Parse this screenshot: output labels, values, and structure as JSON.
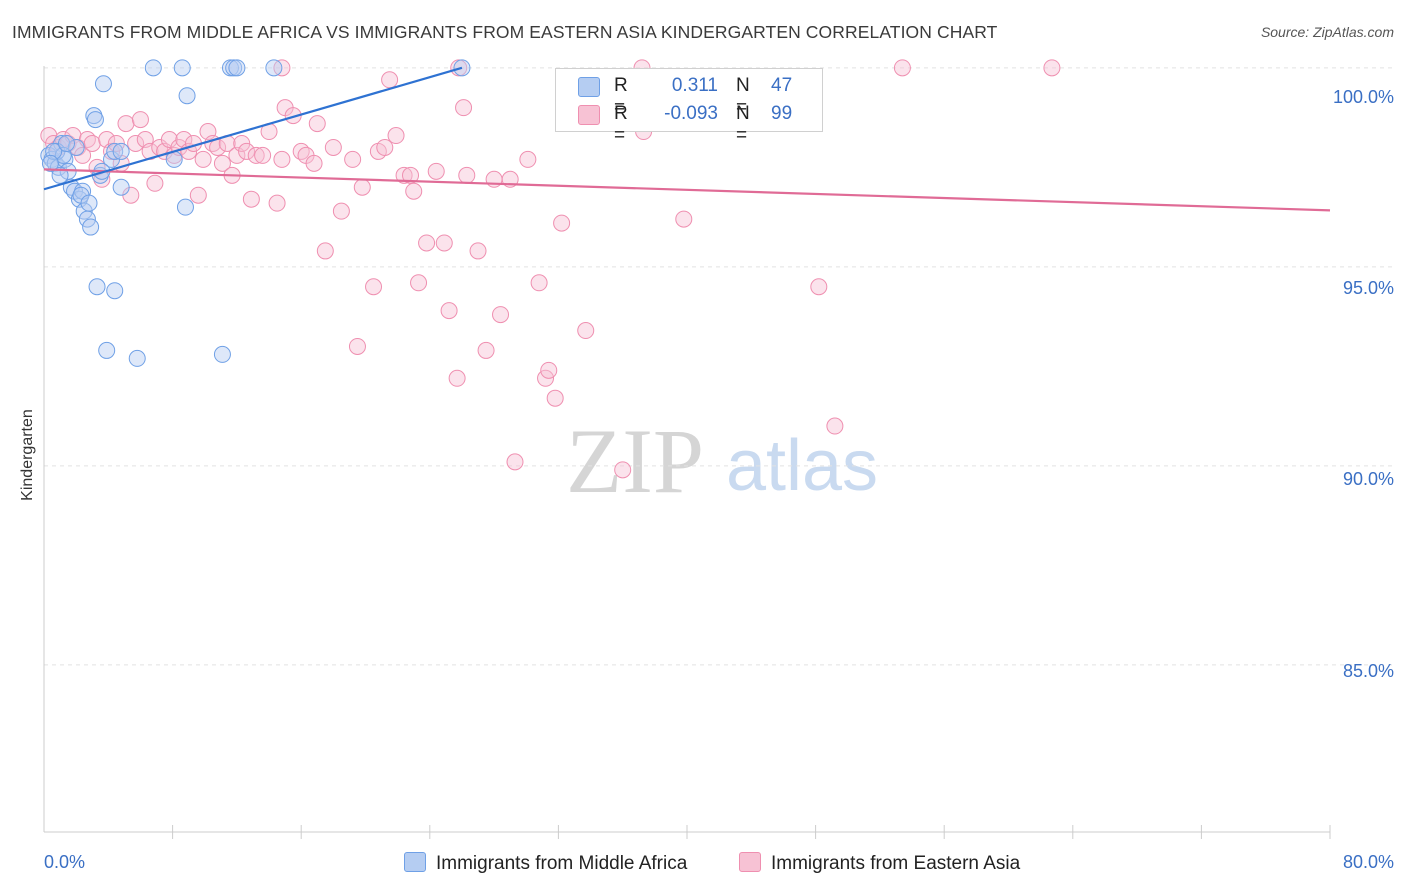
{
  "title": "IMMIGRANTS FROM MIDDLE AFRICA VS IMMIGRANTS FROM EASTERN ASIA KINDERGARTEN CORRELATION CHART",
  "source": "Source: ZipAtlas.com",
  "watermark": {
    "zip": "ZIP",
    "atlas": "atlas"
  },
  "legend": {
    "r_label": "R =",
    "n_label": "N =",
    "rows": [
      {
        "name": "Immigrants from Middle Africa",
        "r": "0.311",
        "n": "47"
      },
      {
        "name": "Immigrants from Eastern Asia",
        "r": "-0.093",
        "n": "99"
      }
    ]
  },
  "colors": {
    "blue": "#6fa0e6",
    "blue_fill": "#b5cdf2",
    "blue_line": "#2e72d2",
    "pink": "#ef8fb0",
    "pink_fill": "#f7c2d4",
    "pink_line": "#e06b96",
    "tick_text": "#3a6fc4",
    "grid": "#e2e2e2"
  },
  "chart_data": {
    "type": "scatter",
    "title": "IMMIGRANTS FROM MIDDLE AFRICA VS IMMIGRANTS FROM EASTERN ASIA KINDERGARTEN CORRELATION CHART",
    "xlabel": "",
    "ylabel": "Kindergarten",
    "xlim": [
      0,
      80
    ],
    "ylim": [
      80.8,
      100.7
    ],
    "x_tick_labels": [
      "0.0%",
      "80.0%"
    ],
    "y_ticks": [
      {
        "value": 100,
        "label": "100.0%"
      },
      {
        "value": 95,
        "label": "95.0%"
      },
      {
        "value": 90,
        "label": "90.0%"
      },
      {
        "value": 85,
        "label": "85.0%"
      }
    ],
    "series": [
      {
        "name": "Immigrants from Middle Africa",
        "r": 0.311,
        "n": 47,
        "trend": {
          "x0": 0,
          "y0": 96.95,
          "x1": 26.0,
          "y1": 100.0
        },
        "points": [
          [
            0.3,
            97.8
          ],
          [
            0.5,
            97.7
          ],
          [
            0.7,
            97.6
          ],
          [
            0.9,
            97.5
          ],
          [
            1.1,
            98.1
          ],
          [
            1.3,
            97.7
          ],
          [
            1.5,
            97.4
          ],
          [
            1.7,
            97.0
          ],
          [
            1.9,
            96.9
          ],
          [
            2.0,
            98.0
          ],
          [
            2.2,
            96.7
          ],
          [
            2.4,
            96.9
          ],
          [
            2.5,
            96.4
          ],
          [
            2.7,
            96.2
          ],
          [
            2.9,
            96.0
          ],
          [
            3.1,
            98.8
          ],
          [
            3.2,
            98.7
          ],
          [
            3.3,
            94.5
          ],
          [
            3.5,
            97.3
          ],
          [
            3.7,
            99.6
          ],
          [
            3.9,
            92.9
          ],
          [
            4.2,
            97.7
          ],
          [
            4.4,
            97.9
          ],
          [
            4.4,
            94.4
          ],
          [
            4.8,
            97.9
          ],
          [
            4.8,
            97.0
          ],
          [
            5.8,
            92.7
          ],
          [
            6.8,
            100.0
          ],
          [
            8.1,
            97.7
          ],
          [
            8.6,
            100.0
          ],
          [
            8.9,
            99.3
          ],
          [
            8.8,
            96.5
          ],
          [
            11.1,
            92.8
          ],
          [
            11.6,
            100.0
          ],
          [
            11.8,
            100.0
          ],
          [
            12.0,
            100.0
          ],
          [
            14.3,
            100.0
          ],
          [
            26.0,
            100.0
          ],
          [
            0.8,
            97.9
          ],
          [
            1.2,
            97.8
          ],
          [
            1.0,
            97.3
          ],
          [
            2.3,
            96.8
          ],
          [
            3.6,
            97.4
          ],
          [
            0.6,
            97.9
          ],
          [
            1.4,
            98.1
          ],
          [
            0.4,
            97.6
          ],
          [
            2.8,
            96.6
          ]
        ]
      },
      {
        "name": "Immigrants from Eastern Asia",
        "r": -0.093,
        "n": 99,
        "trend": {
          "x0": 0,
          "y0": 97.45,
          "x1": 80.0,
          "y1": 96.42
        },
        "points": [
          [
            0.3,
            98.3
          ],
          [
            0.6,
            98.1
          ],
          [
            0.9,
            98.0
          ],
          [
            1.2,
            98.2
          ],
          [
            1.5,
            98.1
          ],
          [
            1.8,
            98.3
          ],
          [
            2.1,
            98.0
          ],
          [
            2.4,
            97.8
          ],
          [
            2.7,
            98.2
          ],
          [
            3.0,
            98.1
          ],
          [
            3.3,
            97.5
          ],
          [
            3.6,
            97.2
          ],
          [
            3.9,
            98.2
          ],
          [
            4.2,
            97.9
          ],
          [
            4.5,
            98.1
          ],
          [
            4.8,
            97.6
          ],
          [
            5.1,
            98.6
          ],
          [
            5.4,
            96.8
          ],
          [
            5.7,
            98.1
          ],
          [
            6.0,
            98.7
          ],
          [
            6.3,
            98.2
          ],
          [
            6.6,
            97.9
          ],
          [
            6.9,
            97.1
          ],
          [
            7.2,
            98.0
          ],
          [
            7.5,
            97.9
          ],
          [
            7.8,
            98.2
          ],
          [
            8.1,
            97.8
          ],
          [
            8.4,
            98.0
          ],
          [
            8.7,
            98.2
          ],
          [
            9.0,
            97.9
          ],
          [
            9.3,
            98.1
          ],
          [
            9.6,
            96.8
          ],
          [
            9.9,
            97.7
          ],
          [
            10.2,
            98.4
          ],
          [
            10.5,
            98.1
          ],
          [
            10.8,
            98.0
          ],
          [
            11.1,
            97.6
          ],
          [
            11.4,
            98.1
          ],
          [
            11.7,
            97.3
          ],
          [
            12.0,
            97.8
          ],
          [
            12.3,
            98.1
          ],
          [
            12.6,
            97.9
          ],
          [
            12.9,
            96.7
          ],
          [
            13.2,
            97.8
          ],
          [
            13.6,
            97.8
          ],
          [
            14.0,
            98.4
          ],
          [
            14.5,
            96.6
          ],
          [
            14.8,
            97.7
          ],
          [
            15.0,
            99.0
          ],
          [
            15.5,
            98.8
          ],
          [
            16.0,
            97.9
          ],
          [
            16.3,
            97.8
          ],
          [
            16.8,
            97.6
          ],
          [
            17.0,
            98.6
          ],
          [
            17.5,
            95.4
          ],
          [
            18.0,
            98.0
          ],
          [
            18.5,
            96.4
          ],
          [
            19.2,
            97.7
          ],
          [
            19.5,
            93.0
          ],
          [
            19.8,
            97.0
          ],
          [
            20.5,
            94.5
          ],
          [
            20.8,
            97.9
          ],
          [
            21.2,
            98.0
          ],
          [
            21.5,
            99.7
          ],
          [
            21.9,
            98.3
          ],
          [
            22.4,
            97.3
          ],
          [
            22.8,
            97.3
          ],
          [
            23.0,
            96.9
          ],
          [
            23.3,
            94.6
          ],
          [
            23.8,
            95.6
          ],
          [
            24.4,
            97.4
          ],
          [
            24.9,
            95.6
          ],
          [
            25.2,
            93.9
          ],
          [
            25.7,
            92.2
          ],
          [
            26.1,
            99.0
          ],
          [
            26.3,
            97.3
          ],
          [
            27.0,
            95.4
          ],
          [
            27.5,
            92.9
          ],
          [
            28.0,
            97.2
          ],
          [
            28.4,
            93.8
          ],
          [
            29.0,
            97.2
          ],
          [
            29.3,
            90.1
          ],
          [
            30.1,
            97.7
          ],
          [
            30.8,
            94.6
          ],
          [
            31.2,
            92.2
          ],
          [
            31.4,
            92.4
          ],
          [
            31.8,
            91.7
          ],
          [
            32.2,
            96.1
          ],
          [
            33.7,
            93.4
          ],
          [
            36.0,
            89.9
          ],
          [
            37.3,
            98.4
          ],
          [
            39.8,
            96.2
          ],
          [
            48.2,
            94.5
          ],
          [
            49.2,
            91.0
          ],
          [
            14.8,
            100.0
          ],
          [
            25.8,
            100.0
          ],
          [
            37.2,
            100.0
          ],
          [
            53.4,
            100.0
          ],
          [
            62.7,
            100.0
          ]
        ]
      }
    ]
  }
}
